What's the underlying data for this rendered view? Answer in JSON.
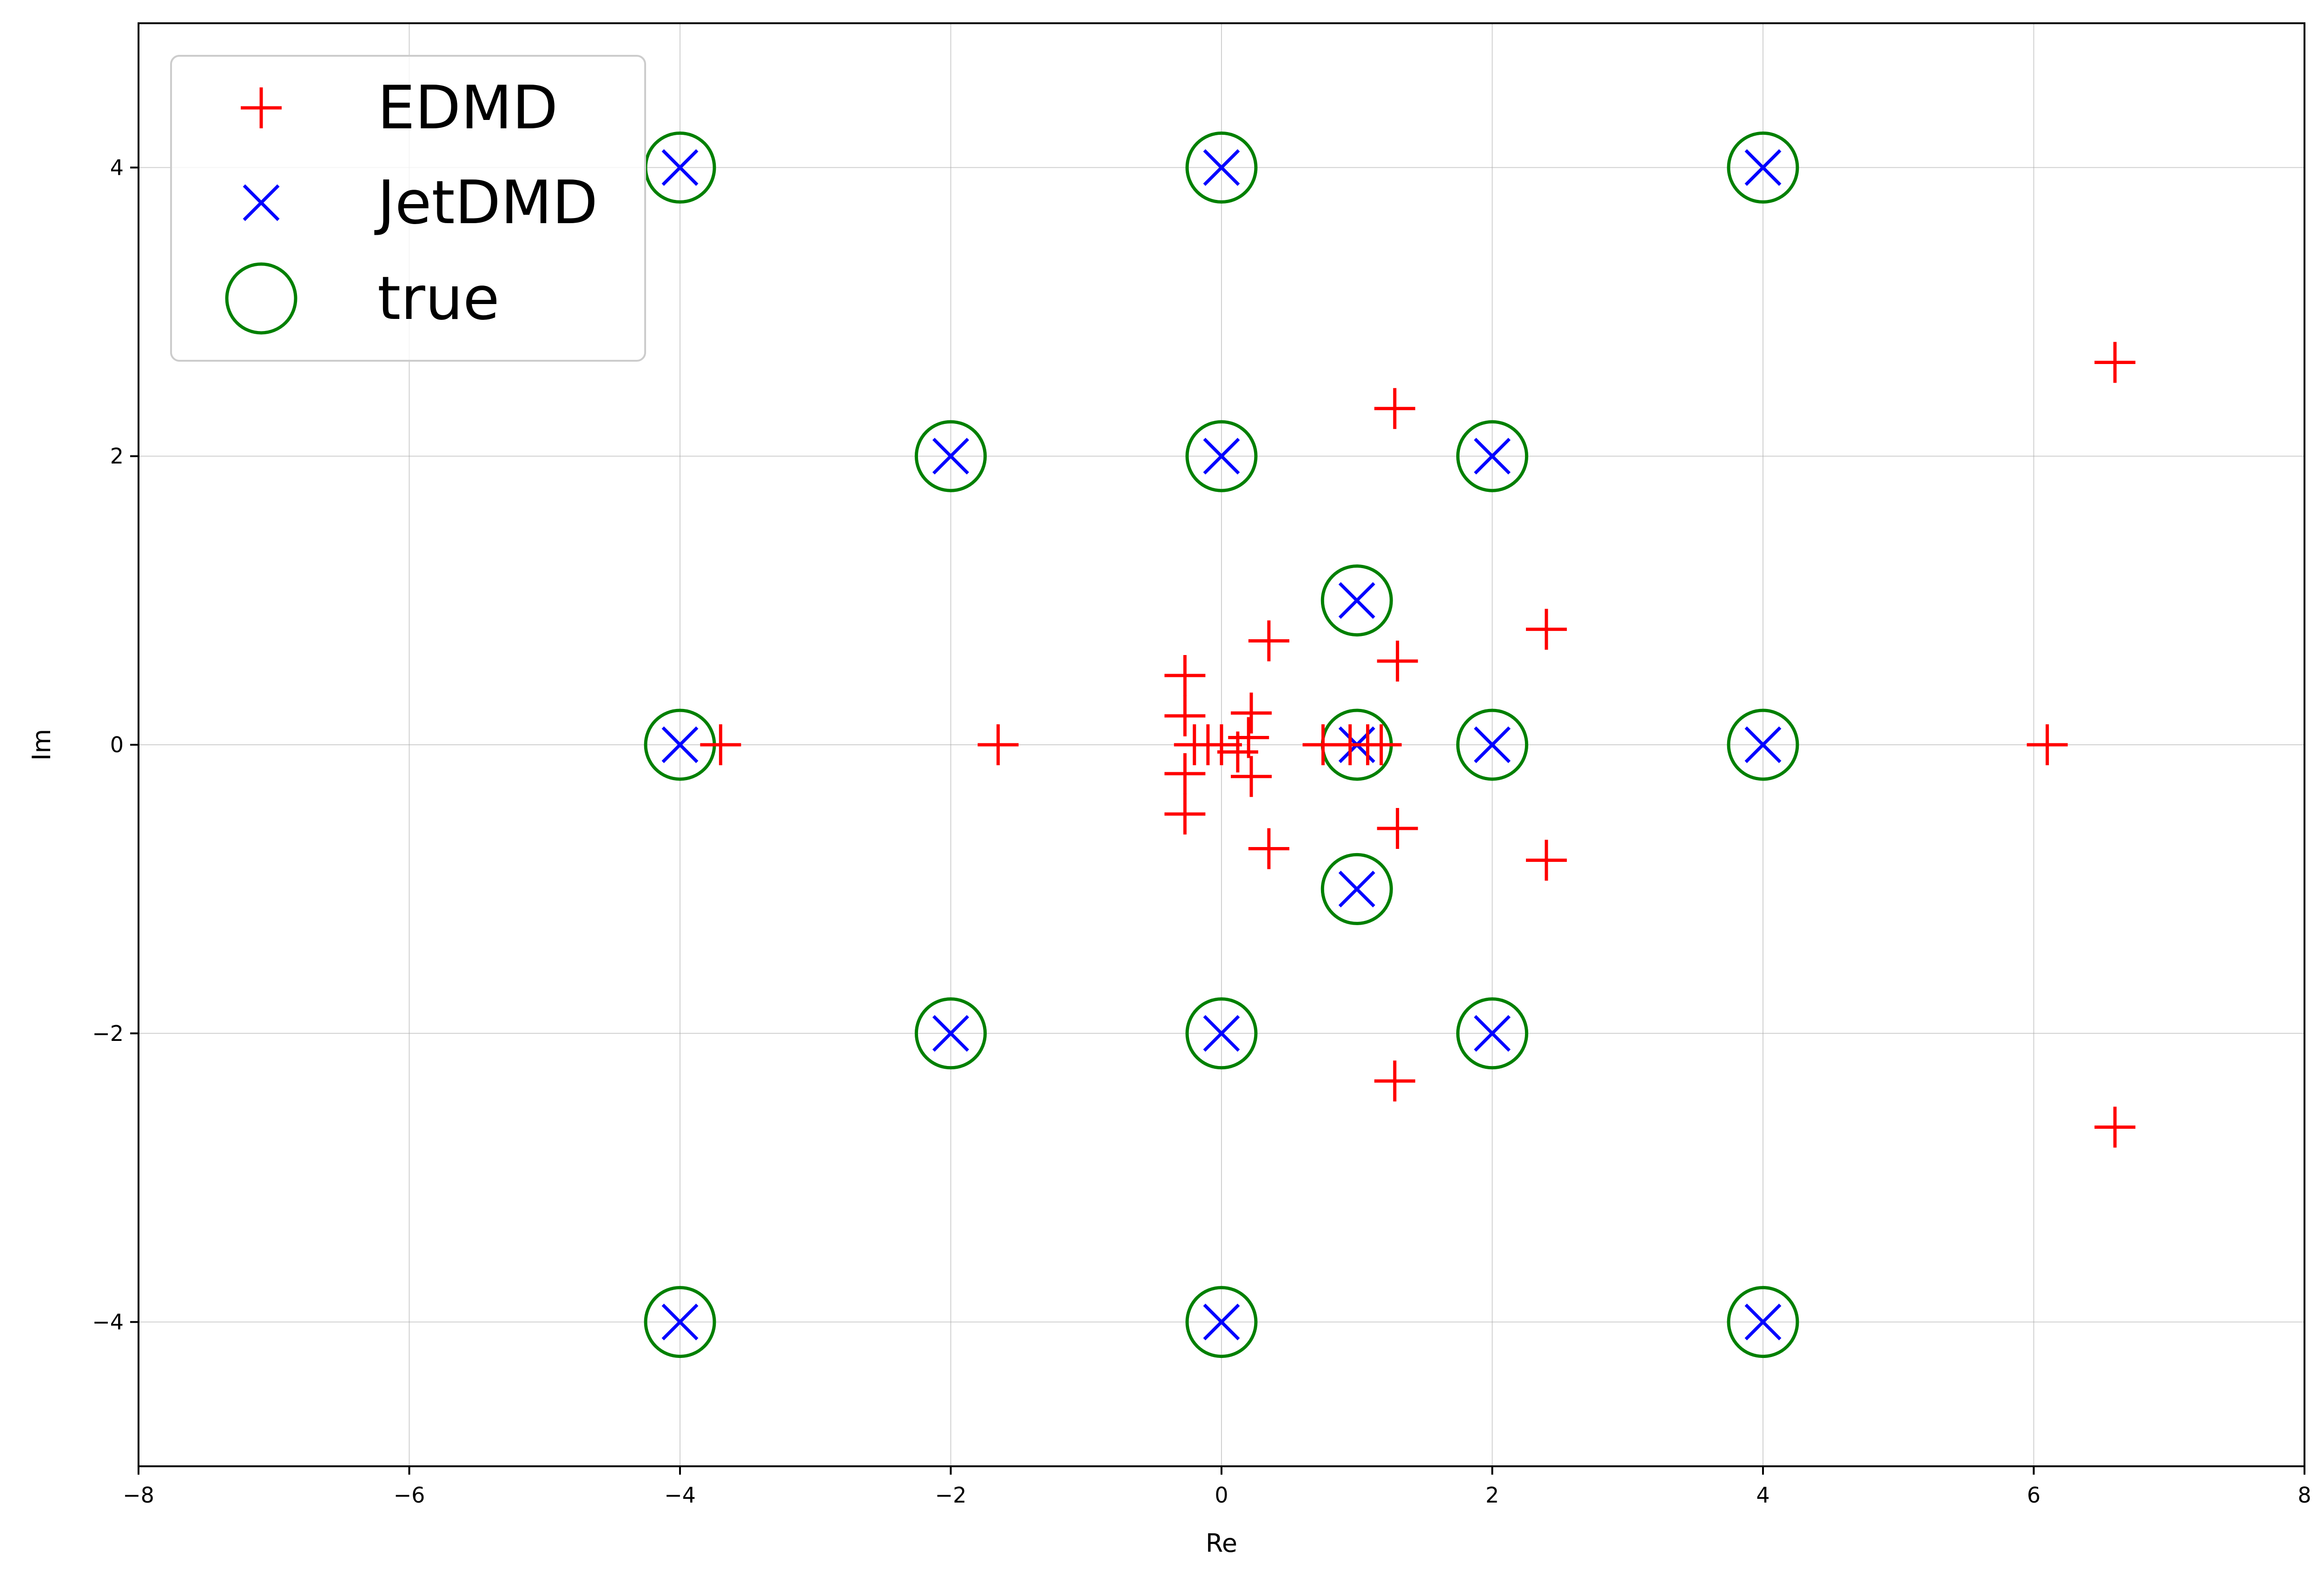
{
  "chart_data": {
    "type": "scatter",
    "xlabel": "Re",
    "ylabel": "Im",
    "xlim": [
      -8,
      8
    ],
    "ylim": [
      -5,
      5
    ],
    "xticks": [
      -8,
      -6,
      -4,
      -2,
      0,
      2,
      4,
      6,
      8
    ],
    "yticks": [
      -4,
      -2,
      0,
      2,
      4
    ],
    "xtick_labels": [
      "−8",
      "−6",
      "−4",
      "−2",
      "0",
      "2",
      "4",
      "6",
      "8"
    ],
    "ytick_labels": [
      "−4",
      "−2",
      "0",
      "2",
      "4"
    ],
    "grid": true,
    "legend_position": "top-left",
    "series": [
      {
        "name": "EDMD",
        "marker": "plus",
        "color": "#ff0000",
        "x": [
          6.6,
          6.6,
          6.1,
          1.28,
          1.28,
          2.4,
          2.4,
          1.3,
          1.3,
          0.35,
          0.35,
          0.22,
          0.22,
          0.2,
          0.12,
          0.0,
          -0.1,
          -0.2,
          -0.27,
          -0.27,
          -0.27,
          -0.27,
          -1.65,
          -3.7,
          0.75,
          0.95,
          1.08,
          1.18
        ],
        "y": [
          2.65,
          -2.65,
          0.0,
          2.33,
          -2.33,
          0.8,
          -0.8,
          0.58,
          -0.58,
          0.72,
          -0.72,
          0.22,
          -0.22,
          0.05,
          -0.05,
          0.0,
          0.0,
          0.0,
          0.48,
          -0.48,
          0.2,
          -0.2,
          0.0,
          0.0,
          0.0,
          0.0,
          0.0,
          0.0
        ]
      },
      {
        "name": "JetDMD",
        "marker": "x",
        "color": "#0000ff",
        "x": [
          -4,
          0,
          4,
          -2,
          0,
          2,
          1,
          -4,
          1,
          2,
          4,
          1,
          -2,
          0,
          2,
          -4,
          0,
          4
        ],
        "y": [
          4,
          4,
          4,
          2,
          2,
          2,
          1,
          0,
          0,
          0,
          0,
          -1,
          -2,
          -2,
          -2,
          -4,
          -4,
          -4
        ]
      },
      {
        "name": "true",
        "marker": "circle",
        "color": "#008000",
        "x": [
          -4,
          0,
          4,
          -2,
          0,
          2,
          1,
          -4,
          1,
          2,
          4,
          1,
          -2,
          0,
          2,
          -4,
          0,
          4
        ],
        "y": [
          4,
          4,
          4,
          2,
          2,
          2,
          1,
          0,
          0,
          0,
          0,
          -1,
          -2,
          -2,
          -2,
          -4,
          -4,
          -4
        ]
      }
    ]
  }
}
